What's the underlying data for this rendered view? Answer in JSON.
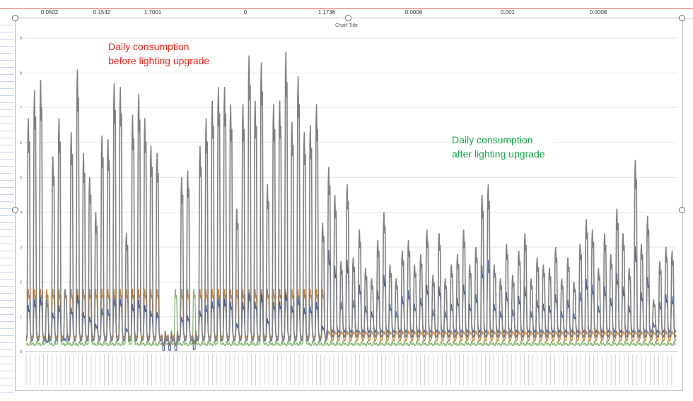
{
  "sheet": {
    "cells": [
      "0.0502",
      "0.1542",
      "1.7001",
      "0",
      "1.1736",
      "0.0006",
      "0.001",
      "0.0008"
    ]
  },
  "annotations": {
    "before": "Daily consumption before lighting upgrade",
    "after": "Daily consumption after lighting upgrade"
  },
  "colors": {
    "grey_series": "#7f7f7f",
    "orange_series": "#c5792a",
    "blue_series": "#2e4d8f",
    "green_series": "#6aa84f",
    "before_text": "#e8261c",
    "after_text": "#11a448"
  },
  "chart_data": {
    "type": "line",
    "title": "Chart Title",
    "xlabel": "",
    "ylabel": "",
    "ylim": [
      0,
      9
    ],
    "yticks": [
      0,
      1,
      2,
      3,
      4,
      5,
      6,
      7,
      8,
      9
    ],
    "grid": true,
    "series": [
      {
        "color": "grey_series",
        "peaks": [
          6.7,
          7.5,
          7.8,
          1.5,
          5.6,
          6.7,
          1.8,
          6.3,
          8.1,
          5.7,
          5.0,
          4.0,
          6.2,
          6.1,
          7.7,
          7.6,
          3.4,
          6.8,
          7.4,
          6.7,
          5.9,
          5.7,
          0.2,
          0.2,
          0.2,
          5.0,
          5.2,
          0.3,
          5.9,
          6.7,
          7.2,
          7.6,
          7.6,
          7.1,
          4.1,
          7.1,
          8.5,
          7.2,
          8.3,
          4.8,
          7.1,
          7.2,
          8.6,
          6.6,
          7.9,
          6.3,
          6.5,
          7.1,
          3.7,
          5.3,
          4.5,
          2.6,
          4.8,
          2.7,
          3.5,
          2.4,
          2.1,
          3.2,
          4.0,
          2.5,
          2.1,
          2.9,
          3.2,
          2.5,
          2.8,
          3.5,
          2.2,
          3.4,
          2.1,
          2.5,
          2.8,
          3.5,
          2.5,
          3.0,
          4.5,
          4.8,
          2.5,
          2.1,
          3.1,
          2.2,
          2.9,
          3.4,
          2.1,
          2.7,
          2.5,
          2.4,
          3.0,
          2.1,
          2.7,
          2.0,
          3.1,
          3.8,
          3.5,
          2.4,
          3.4,
          2.8,
          4.1,
          3.4,
          2.4,
          5.5,
          3.1,
          3.9,
          1.5,
          2.6,
          3.0,
          2.9
        ],
        "base_before": 0.3,
        "base_after": 0.4
      },
      {
        "color": "orange_series",
        "peak_before": 1.8,
        "peak_after": 0.6
      },
      {
        "color": "blue_series",
        "peak_before": 1.2,
        "peak_after": 1.2
      },
      {
        "color": "green_series",
        "peak_before": 1.8
      }
    ]
  }
}
